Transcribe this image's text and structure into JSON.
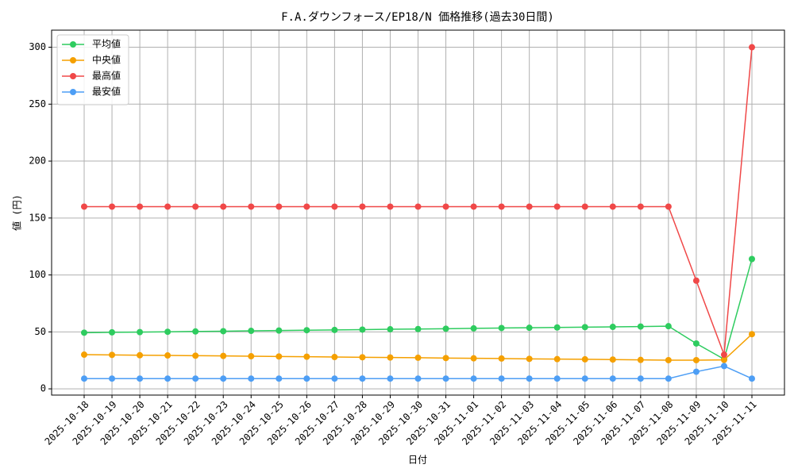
{
  "chart_data": {
    "type": "line",
    "title": "F.A.ダウンフォース/EP18/N 価格推移(過去30日間)",
    "x_label": "日付",
    "y_label": "値 (円)",
    "categories": [
      "2025-10-18",
      "2025-10-19",
      "2025-10-20",
      "2025-10-21",
      "2025-10-22",
      "2025-10-23",
      "2025-10-24",
      "2025-10-25",
      "2025-10-26",
      "2025-10-27",
      "2025-10-28",
      "2025-10-29",
      "2025-10-30",
      "2025-10-31",
      "2025-11-01",
      "2025-11-02",
      "2025-11-03",
      "2025-11-04",
      "2025-11-05",
      "2025-11-06",
      "2025-11-07",
      "2025-11-08",
      "2025-11-09",
      "2025-11-10",
      "2025-11-11"
    ],
    "series": [
      {
        "name": "平均値",
        "color": "#2ecc5f",
        "values": [
          49.3,
          49.6,
          49.8,
          50.1,
          50.4,
          50.6,
          50.9,
          51.2,
          51.5,
          51.7,
          52.0,
          52.3,
          52.5,
          52.8,
          53.1,
          53.4,
          53.6,
          53.9,
          54.2,
          54.4,
          54.7,
          55.0,
          39.8,
          26,
          114
        ]
      },
      {
        "name": "中央値",
        "color": "#f5a000",
        "values": [
          30.0,
          29.8,
          29.5,
          29.3,
          29.1,
          28.9,
          28.6,
          28.4,
          28.2,
          27.9,
          27.7,
          27.5,
          27.3,
          27.0,
          26.8,
          26.6,
          26.3,
          26.1,
          25.9,
          25.7,
          25.4,
          25.2,
          25.2,
          25.4,
          48
        ]
      },
      {
        "name": "最高値",
        "color": "#f04848",
        "values": [
          160,
          160,
          160,
          160,
          160,
          160,
          160,
          160,
          160,
          160,
          160,
          160,
          160,
          160,
          160,
          160,
          160,
          160,
          160,
          160,
          160,
          160,
          95,
          30,
          300
        ]
      },
      {
        "name": "最安値",
        "color": "#4d9ef5",
        "values": [
          9,
          9,
          9,
          9,
          9,
          9,
          9,
          9,
          9,
          9,
          9,
          9,
          9,
          9,
          9,
          9,
          9,
          9,
          9,
          9,
          9,
          9,
          15,
          20,
          9
        ]
      }
    ],
    "ylim": [
      -5.5,
      315
    ],
    "yticks": [
      0,
      50,
      100,
      150,
      200,
      250,
      300
    ],
    "grid": true,
    "legend": "upper left"
  }
}
